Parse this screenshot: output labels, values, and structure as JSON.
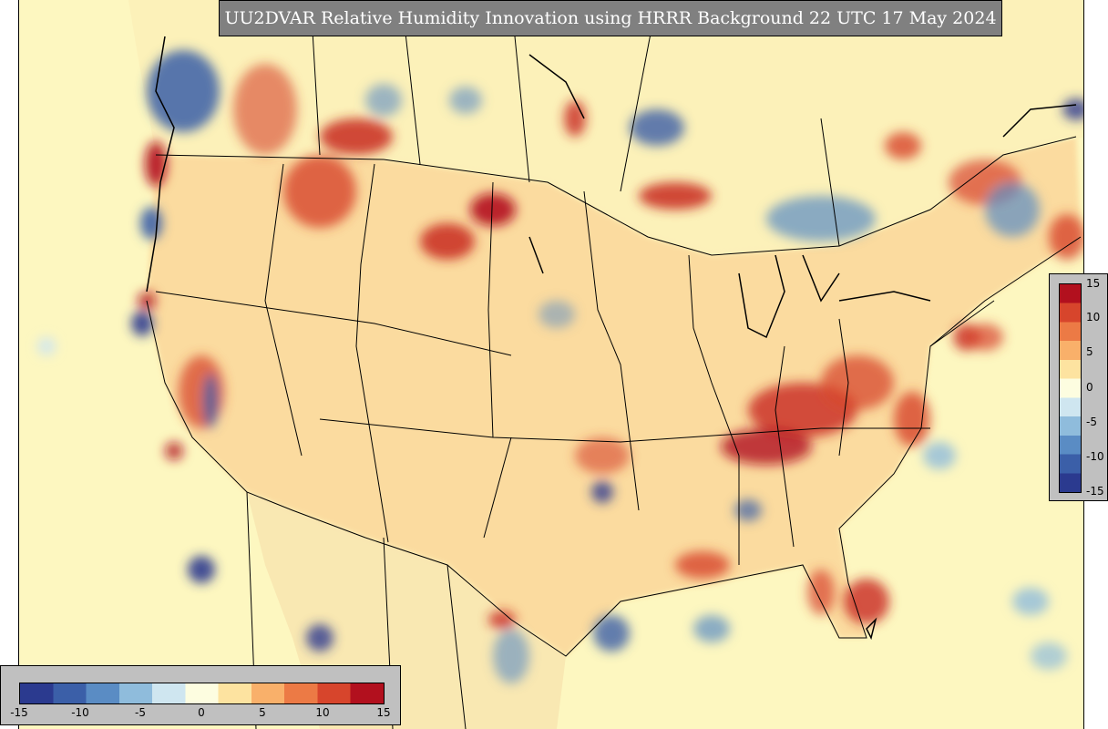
{
  "title": "UU2DVAR Relative Humidity Innovation using HRRR Background 22 UTC 17 May 2024",
  "colorbar": {
    "min": -15,
    "max": 15,
    "right_ticks": [
      "15",
      "10",
      "5",
      "0",
      "-5",
      "-10",
      "-15"
    ],
    "bottom_ticks": [
      "-15",
      "-10",
      "-5",
      "0",
      "5",
      "10",
      "15"
    ],
    "colors": [
      "#2b3a8f",
      "#3b5fa8",
      "#5a8cc4",
      "#8fbcdc",
      "#cfe6f0",
      "#fdfde0",
      "#fde3a0",
      "#f9b06a",
      "#ec7a45",
      "#d7452c",
      "#b2101e"
    ]
  },
  "map": {
    "background_color": "#fdf7c0",
    "region": "CONUS"
  }
}
